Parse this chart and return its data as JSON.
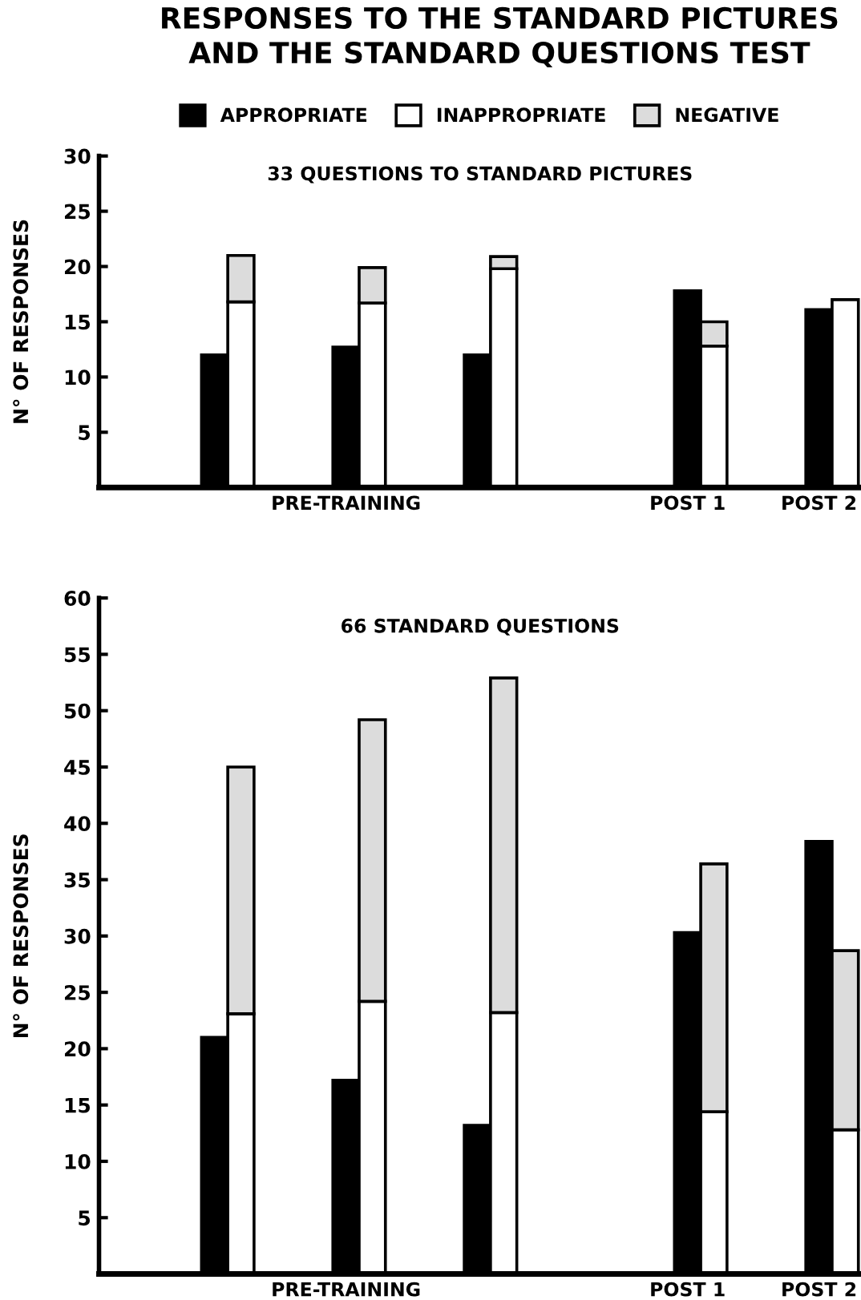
{
  "chart_data": [
    {
      "type": "bar",
      "title": "RESPONSES TO THE STANDARD PICTURES\nAND THE STANDARD QUESTIONS TEST",
      "subtitle": "33 QUESTIONS TO STANDARD PICTURES",
      "ylabel": "N° OF RESPONSES",
      "categories": [
        null,
        null,
        null,
        null,
        null,
        "PRE-TRAINING",
        null,
        null,
        null,
        null,
        null,
        null,
        null,
        null,
        null,
        null,
        null,
        null,
        "POST 1",
        null,
        null,
        null,
        null,
        "POST 2",
        null
      ],
      "ylim": [
        0,
        30
      ],
      "yticks": [
        5,
        10,
        15,
        20,
        25,
        30
      ],
      "grid": false,
      "legend": "top",
      "stacked": true,
      "series": [
        {
          "name": "APPROPRIATE",
          "color": "#000000",
          "values": [
            12,
            null,
            null,
            null,
            null,
            12.7,
            null,
            null,
            null,
            null,
            12,
            null,
            null,
            null,
            null,
            null,
            null,
            null,
            17.8,
            null,
            null,
            null,
            null,
            16.1,
            null
          ]
        },
        {
          "name": "INAPPROPRIATE",
          "color": "#ffffff",
          "values": [
            null,
            16.8,
            null,
            null,
            null,
            null,
            16.7,
            null,
            null,
            null,
            null,
            19.8,
            null,
            null,
            null,
            null,
            null,
            null,
            null,
            12.8,
            null,
            null,
            null,
            null,
            17
          ]
        },
        {
          "name": "NEGATIVE",
          "color": "#dcdcdc",
          "values": [
            null,
            4.2,
            null,
            null,
            null,
            null,
            3.2,
            null,
            null,
            null,
            null,
            1.1,
            null,
            null,
            null,
            null,
            null,
            null,
            null,
            2.2,
            null,
            null,
            null,
            null,
            null
          ]
        }
      ]
    },
    {
      "type": "bar",
      "subtitle": "66 STANDARD QUESTIONS",
      "ylabel": "N° OF RESPONSES",
      "categories": [
        null,
        null,
        null,
        null,
        null,
        "PRE-TRAINING",
        null,
        null,
        null,
        null,
        null,
        null,
        null,
        null,
        null,
        null,
        null,
        null,
        "POST 1",
        null,
        null,
        null,
        null,
        "POST 2",
        null
      ],
      "ylim": [
        0,
        60
      ],
      "yticks": [
        5,
        10,
        15,
        20,
        25,
        30,
        35,
        40,
        45,
        50,
        55,
        60
      ],
      "grid": false,
      "stacked": true,
      "series": [
        {
          "color": "#000000",
          "values": [
            21,
            null,
            null,
            null,
            null,
            17.2,
            null,
            null,
            null,
            null,
            13.2,
            null,
            null,
            null,
            null,
            null,
            null,
            null,
            30.3,
            null,
            null,
            null,
            null,
            38.4,
            null
          ]
        },
        {
          "color": "#ffffff",
          "values": [
            null,
            23.1,
            null,
            null,
            null,
            null,
            24.2,
            null,
            null,
            null,
            null,
            23.2,
            null,
            null,
            null,
            null,
            null,
            null,
            null,
            14.4,
            null,
            null,
            null,
            null,
            12.8
          ]
        },
        {
          "color": "#dcdcdc",
          "values": [
            null,
            21.9,
            null,
            null,
            null,
            null,
            25,
            null,
            null,
            null,
            null,
            29.7,
            null,
            null,
            null,
            null,
            null,
            null,
            null,
            22,
            null,
            null,
            null,
            null,
            15.9
          ]
        }
      ]
    }
  ]
}
